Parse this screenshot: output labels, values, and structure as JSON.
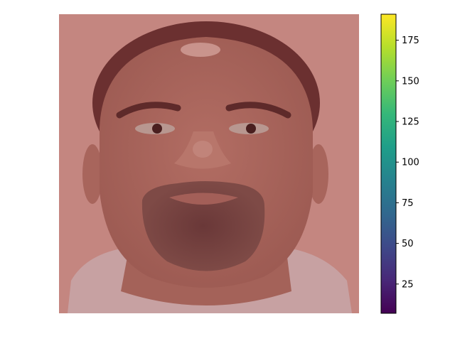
{
  "chart_data": {
    "type": "heatmap",
    "title": "",
    "xlabel": "",
    "ylabel": "",
    "image": {
      "subject": "face-photo",
      "axes_visible": false,
      "overlay_tint": "#b87a74"
    },
    "colorbar": {
      "colormap": "viridis",
      "range": [
        7,
        191
      ],
      "ticks": [
        25,
        50,
        75,
        100,
        125,
        150,
        175
      ],
      "tick_labels": [
        "25",
        "50",
        "75",
        "100",
        "125",
        "150",
        "175"
      ],
      "colors": [
        "#440154",
        "#482878",
        "#3e4989",
        "#31688e",
        "#26828e",
        "#1f9e89",
        "#35b779",
        "#6ece58",
        "#b5de2b",
        "#fde725"
      ]
    }
  }
}
